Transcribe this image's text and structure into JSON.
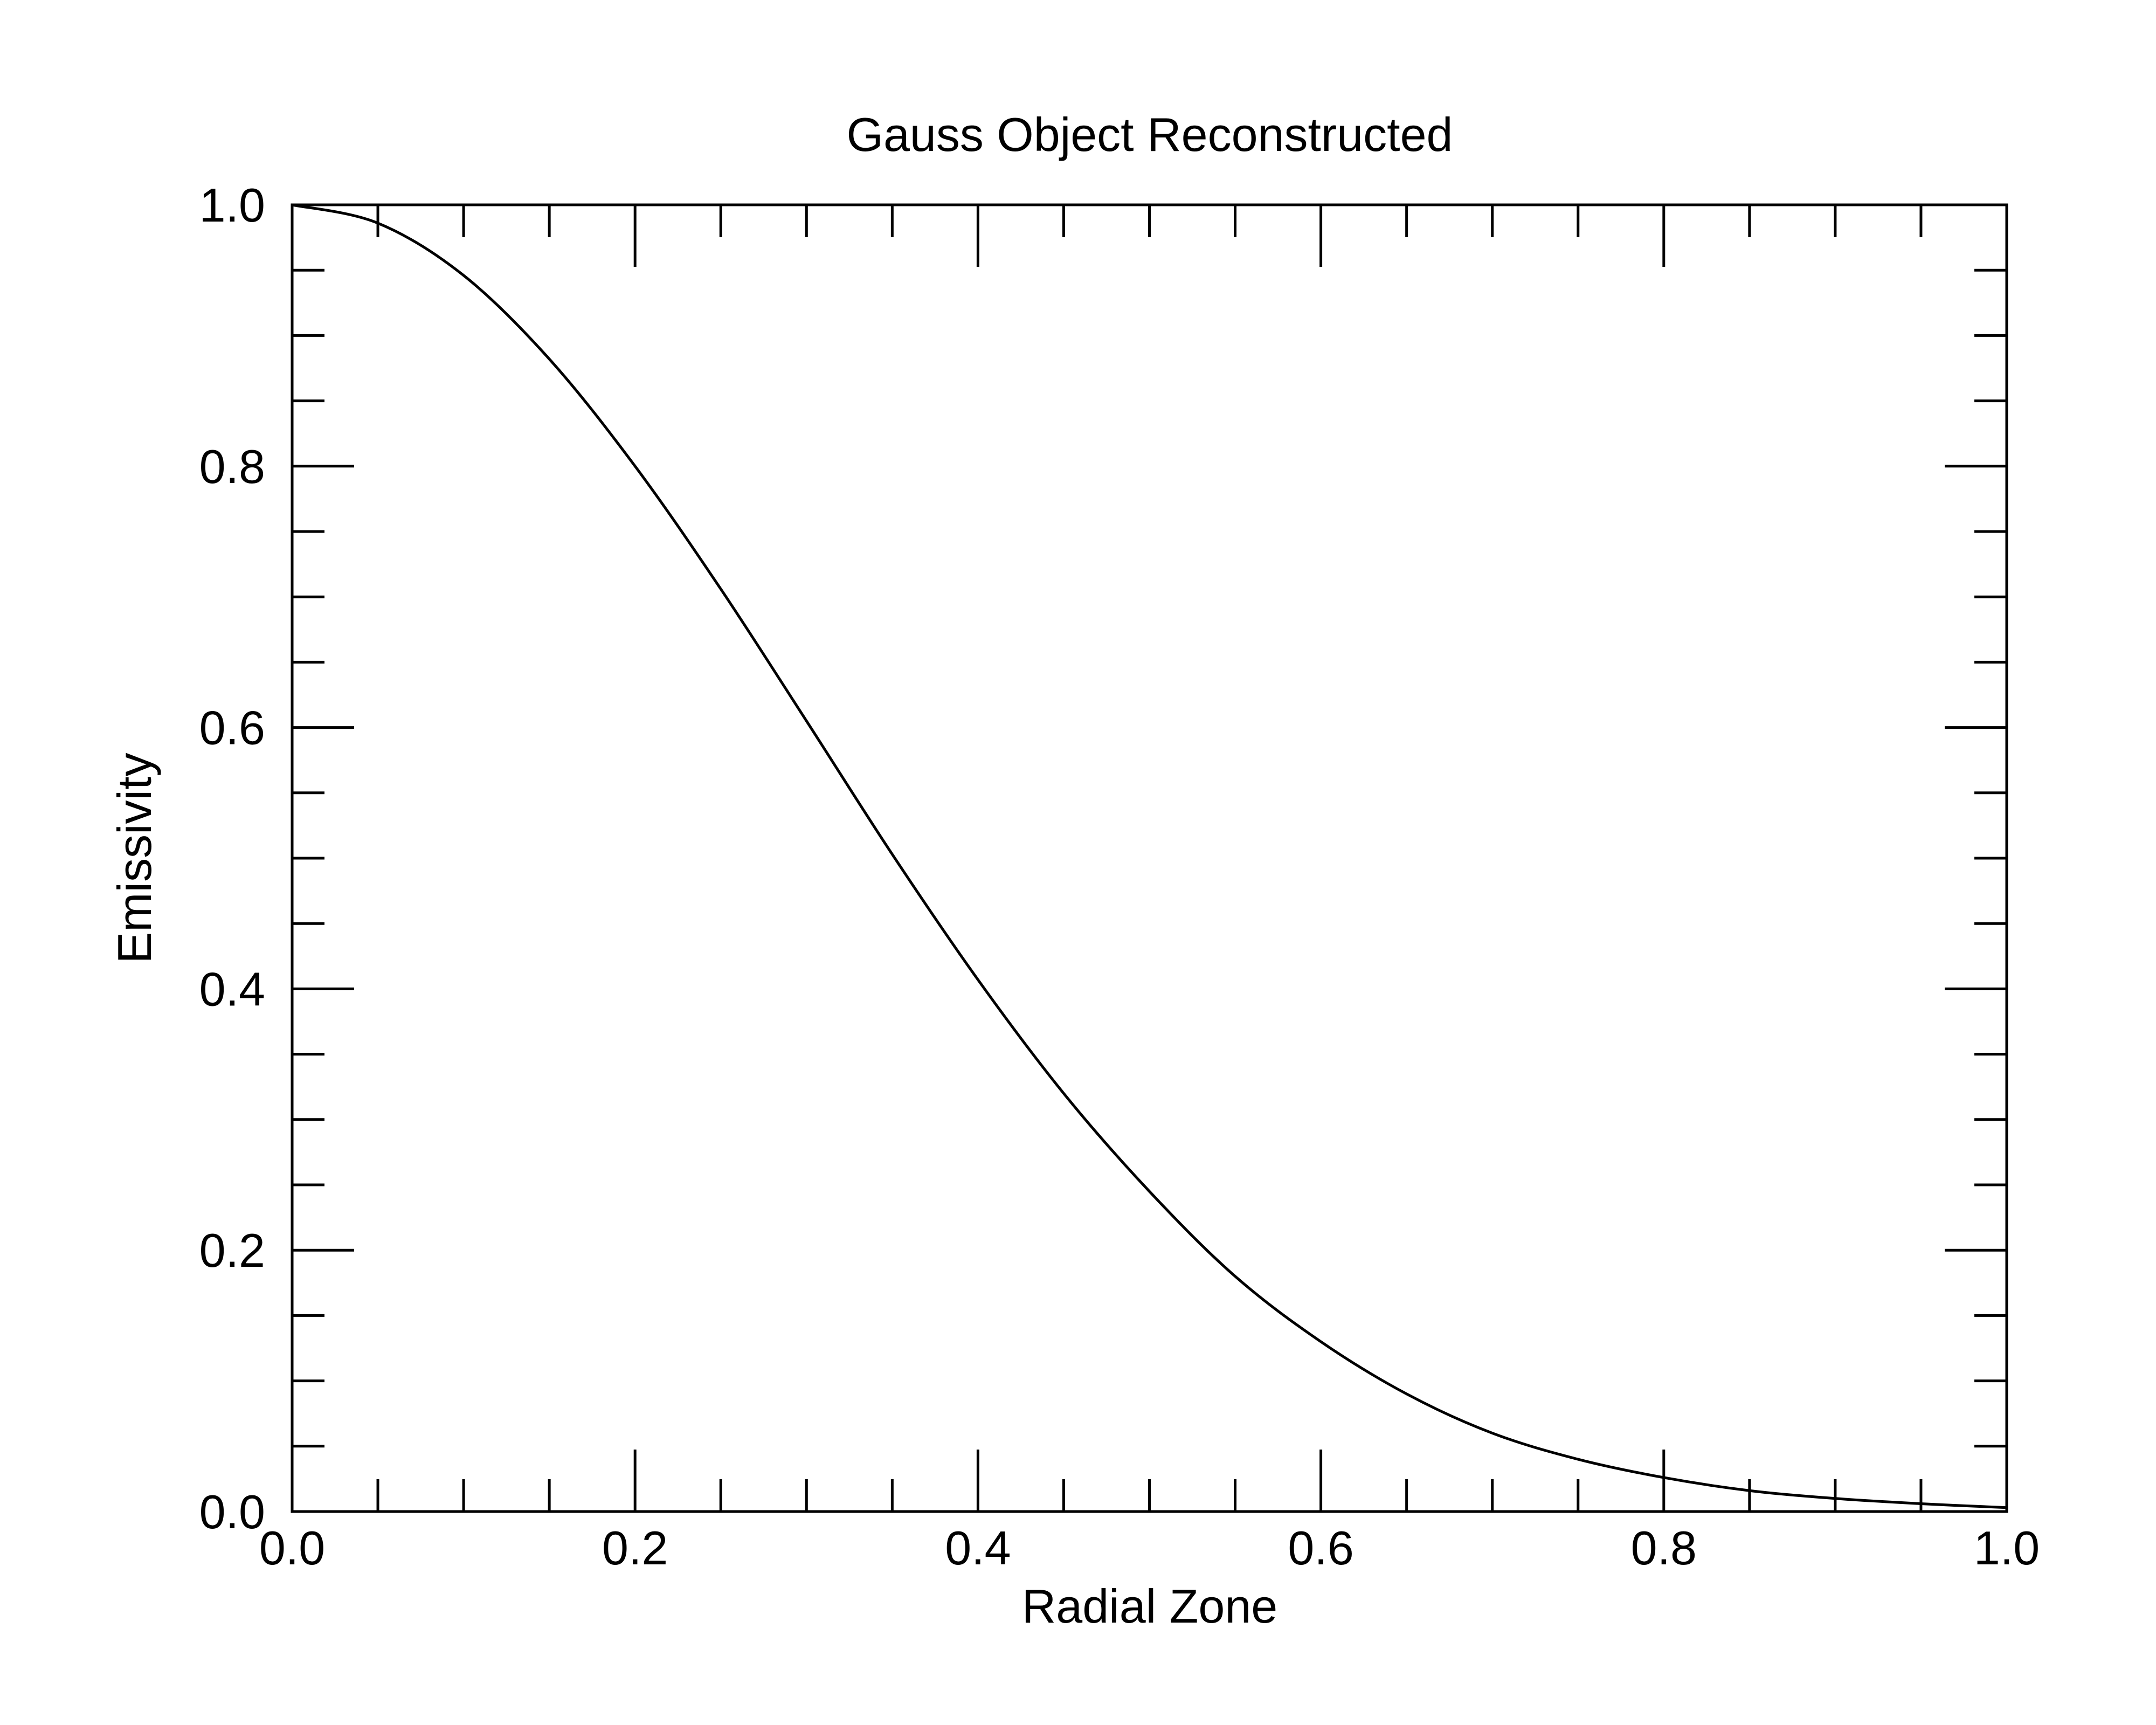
{
  "chart_data": {
    "type": "line",
    "title": "Gauss Object Reconstructed",
    "xlabel": "Radial Zone",
    "ylabel": "Emissivity",
    "xlim": [
      0.0,
      1.0
    ],
    "ylim": [
      0.0,
      1.0
    ],
    "x_ticks": [
      "0.0",
      "0.2",
      "0.4",
      "0.6",
      "0.8",
      "1.0"
    ],
    "y_ticks": [
      "0.0",
      "0.2",
      "0.4",
      "0.6",
      "0.8",
      "1.0"
    ],
    "grid": false,
    "legend": "none",
    "line_color": "#000000",
    "series": [
      {
        "x": [
          0.0,
          0.05,
          0.1,
          0.15,
          0.2,
          0.25,
          0.3,
          0.35,
          0.4,
          0.45,
          0.5,
          0.55,
          0.6,
          0.65,
          0.7,
          0.75,
          0.8,
          0.85,
          0.9,
          0.95,
          1.0
        ],
        "values": [
          1.0,
          0.986,
          0.946,
          0.882,
          0.8,
          0.706,
          0.605,
          0.503,
          0.407,
          0.32,
          0.245,
          0.18,
          0.13,
          0.09,
          0.06,
          0.04,
          0.026,
          0.016,
          0.01,
          0.006,
          0.003
        ]
      }
    ]
  }
}
